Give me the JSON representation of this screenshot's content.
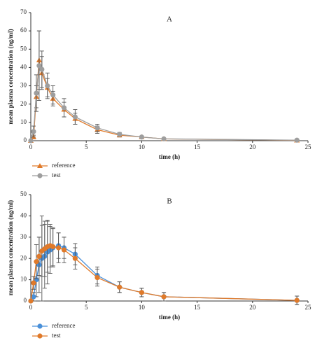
{
  "chart_data": [
    {
      "type": "line",
      "title": "A",
      "x_label": "time (h)",
      "y_label": "mean plasma concentration (ng/ml)",
      "x": [
        0,
        0.25,
        0.5,
        0.75,
        1,
        1.5,
        2,
        3,
        4,
        6,
        8,
        10,
        12,
        24
      ],
      "series": [
        {
          "name": "reference",
          "color": "#e07a2a",
          "marker": "triangle",
          "values": [
            0,
            2,
            24,
            44,
            37,
            29,
            23,
            17,
            12,
            6,
            3,
            2,
            1,
            0.2
          ],
          "errors": [
            0,
            1,
            6,
            16,
            9,
            5,
            4,
            4,
            3,
            2,
            1,
            0.5,
            0.3,
            0.2
          ]
        },
        {
          "name": "test",
          "color": "#9e9e9e",
          "marker": "circle",
          "values": [
            0,
            5,
            26,
            41,
            39,
            30,
            25,
            18,
            13,
            7,
            3.5,
            2,
            1,
            0.3
          ],
          "errors": [
            0,
            3,
            10,
            19,
            10,
            7,
            5,
            5,
            4,
            2,
            1,
            0.6,
            0.3,
            0.2
          ]
        }
      ],
      "xlim": [
        0,
        25
      ],
      "xticks": [
        0,
        5,
        10,
        15,
        20,
        25
      ],
      "ylim": [
        0,
        70
      ],
      "yticks": [
        0,
        10,
        20,
        30,
        40,
        50,
        60,
        70
      ],
      "legend": "bottom-left"
    },
    {
      "type": "line",
      "title": "B",
      "x_label": "time (h)",
      "y_label": "mean plasma concentration (ng/ml)",
      "x": [
        0,
        0.25,
        0.5,
        0.75,
        1,
        1.25,
        1.5,
        1.75,
        2,
        2.5,
        3,
        4,
        6,
        8,
        10,
        12,
        24
      ],
      "series": [
        {
          "name": "reference",
          "color": "#4a90d9",
          "marker": "circle",
          "values": [
            0,
            2,
            10,
            17,
            20,
            21,
            23,
            24,
            25,
            26,
            25,
            22,
            12,
            6.5,
            4,
            2,
            0.3
          ],
          "errors": [
            0,
            2,
            8,
            13,
            20,
            15,
            15,
            11,
            9,
            6,
            5,
            5,
            4,
            2.5,
            2,
            2,
            2
          ]
        },
        {
          "name": "test",
          "color": "#e07a2a",
          "marker": "circle",
          "values": [
            0,
            8.5,
            18.5,
            21,
            23.5,
            24.5,
            25.5,
            26,
            25.5,
            25,
            24,
            20,
            11,
            6.5,
            4,
            2,
            0.3
          ],
          "errors": [
            0,
            3,
            8,
            9,
            12,
            13,
            12,
            10,
            9,
            7,
            6,
            5,
            4,
            2.5,
            2,
            2,
            2
          ]
        }
      ],
      "xlim": [
        0,
        25
      ],
      "xticks": [
        0,
        5,
        10,
        15,
        20,
        25
      ],
      "ylim": [
        0,
        50
      ],
      "yticks": [
        0,
        10,
        20,
        30,
        40,
        50
      ],
      "legend": "bottom-left"
    }
  ]
}
